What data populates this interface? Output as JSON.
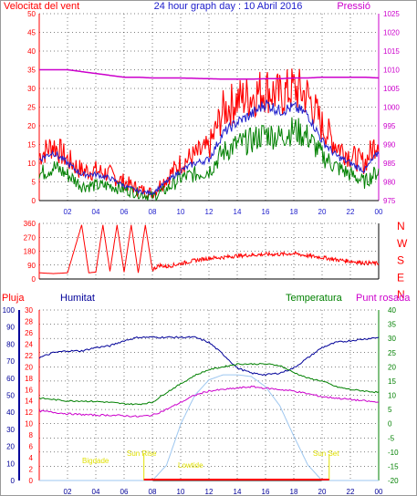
{
  "chart_data": [
    {
      "type": "line",
      "title": "24 hour graph day : 10 Abril 2016",
      "left_axis_label": "Velocitat del vent",
      "right_axis_label": "Pressió",
      "left_ticks": [
        "0",
        "5",
        "10",
        "15",
        "20",
        "25",
        "30",
        "35",
        "40",
        "45",
        "50"
      ],
      "right_ticks": [
        "975",
        "980",
        "985",
        "990",
        "995",
        "1000",
        "1005",
        "1010",
        "1015",
        "1020",
        "1025"
      ],
      "x_ticks": [
        "02",
        "04",
        "06",
        "08",
        "10",
        "12",
        "14",
        "16",
        "18",
        "20",
        "22",
        "00"
      ],
      "ylim_left": [
        0,
        50
      ],
      "ylim_right": [
        975,
        1025
      ],
      "colors": {
        "gust": "#ff0000",
        "avg": "#008000",
        "press": "#cc00cc",
        "mid": "#2020cc",
        "axis": "#ff0000"
      },
      "hours": [
        0,
        1,
        2,
        3,
        4,
        5,
        6,
        7,
        8,
        9,
        10,
        11,
        12,
        13,
        14,
        15,
        16,
        17,
        18,
        19,
        20,
        21,
        22,
        23,
        24
      ],
      "gust": [
        12,
        15,
        11,
        8,
        8,
        7,
        5,
        3,
        2,
        6,
        10,
        12,
        14,
        24,
        27,
        28,
        30,
        28,
        30,
        28,
        20,
        15,
        12,
        10,
        17
      ],
      "wind_mid": [
        11,
        13,
        10,
        7,
        7,
        6,
        4,
        2.5,
        2,
        5,
        8,
        10,
        11,
        18,
        21,
        23,
        26,
        24,
        25,
        23,
        16,
        12,
        10,
        8,
        13
      ],
      "wind_avg": [
        7,
        9,
        7,
        4,
        4,
        4,
        3,
        2,
        1,
        3,
        6,
        7,
        8,
        13,
        15,
        16,
        18,
        17,
        19,
        17,
        12,
        9,
        7,
        5,
        8
      ],
      "pressure": [
        1010,
        1010,
        1010,
        1009.5,
        1009,
        1008.5,
        1008,
        1008,
        1007.8,
        1007.8,
        1007.8,
        1007.7,
        1007.6,
        1007.5,
        1007.5,
        1007.5,
        1007.6,
        1007.6,
        1007.8,
        1007.8,
        1008,
        1008,
        1008,
        1008,
        1007.8
      ]
    },
    {
      "type": "line",
      "title": "",
      "left_ticks": [
        "0",
        "90",
        "180",
        "270",
        "360"
      ],
      "right_labels": [
        "N",
        "W",
        "S",
        "E",
        "N"
      ],
      "ylim": [
        0,
        360
      ],
      "color": "#ff0000",
      "hours": [
        0,
        1,
        2,
        3,
        3.5,
        4,
        4.5,
        5,
        5.5,
        6,
        6.5,
        7,
        7.5,
        8,
        8.5,
        9,
        10,
        11,
        12,
        13,
        14,
        15,
        16,
        17,
        18,
        19,
        20,
        21,
        22,
        23,
        24
      ],
      "direction": [
        40,
        35,
        40,
        350,
        40,
        45,
        350,
        50,
        350,
        45,
        350,
        40,
        350,
        60,
        90,
        80,
        100,
        120,
        135,
        140,
        150,
        155,
        160,
        160,
        165,
        150,
        140,
        125,
        115,
        105,
        100
      ]
    },
    {
      "type": "line",
      "title": "",
      "series_labels": {
        "rain": "Pluja",
        "hum": "Humitat",
        "temp": "Temperatura",
        "dew": "Punt rosada"
      },
      "rain_ticks": [
        "0",
        "2",
        "4",
        "6",
        "8",
        "10",
        "12",
        "14",
        "16",
        "18",
        "20",
        "22",
        "24",
        "26",
        "28",
        "30"
      ],
      "hum_ticks": [
        "0",
        "10",
        "20",
        "30",
        "40",
        "50",
        "60",
        "70",
        "80",
        "90",
        "100"
      ],
      "temp_ticks": [
        "-20",
        "-15",
        "-10",
        "-5",
        "0",
        "5",
        "10",
        "15",
        "20",
        "25",
        "30",
        "35",
        "40"
      ],
      "x_ticks": [
        "02",
        "04",
        "06",
        "08",
        "10",
        "12",
        "14",
        "16",
        "18",
        "20",
        "22",
        "00"
      ],
      "ylim_hum": [
        0,
        100
      ],
      "ylim_temp": [
        -20,
        40
      ],
      "colors": {
        "rain": "#ff0000",
        "hum": "#000099",
        "temp": "#008000",
        "dew": "#cc00cc",
        "sun": "#9ec7f0",
        "sun_label": "#e0e000"
      },
      "hours": [
        0,
        1,
        2,
        3,
        4,
        5,
        6,
        7,
        8,
        9,
        10,
        11,
        12,
        13,
        14,
        15,
        16,
        17,
        18,
        19,
        20,
        21,
        22,
        23,
        24
      ],
      "humidity": [
        72,
        75,
        76,
        76,
        78,
        79,
        82,
        84,
        84,
        84,
        84,
        84,
        81,
        74,
        66,
        63,
        62,
        63,
        66,
        72,
        78,
        81,
        82,
        83,
        84
      ],
      "temp": [
        9,
        8.5,
        8,
        8,
        7.8,
        7.5,
        7,
        6.8,
        7.5,
        11,
        14,
        17,
        19,
        20,
        21,
        21,
        21,
        20.5,
        18,
        16,
        15,
        13,
        12,
        11.5,
        11
      ],
      "dew": [
        4.5,
        4,
        3.5,
        3.2,
        3,
        3,
        2.8,
        2.5,
        3,
        5,
        7.5,
        10,
        11.5,
        12,
        12.5,
        13,
        12.5,
        12,
        11.5,
        10.5,
        9.5,
        9,
        8.5,
        8,
        7.5
      ],
      "solar": [
        0,
        0,
        0,
        0,
        0,
        0,
        0,
        0,
        0,
        9,
        33,
        50,
        59,
        62,
        62,
        61,
        55,
        44,
        26,
        9,
        0,
        0,
        0,
        0,
        0
      ],
      "sun_labels": {
        "bigdate": "Bigdade",
        "sunrise": "Sun Rise",
        "lowtide": "Lowtide",
        "sunset": "Sun Set"
      },
      "sun_events": {
        "sunrise_hour": 7.4,
        "sunset_hour": 20.5
      }
    }
  ]
}
